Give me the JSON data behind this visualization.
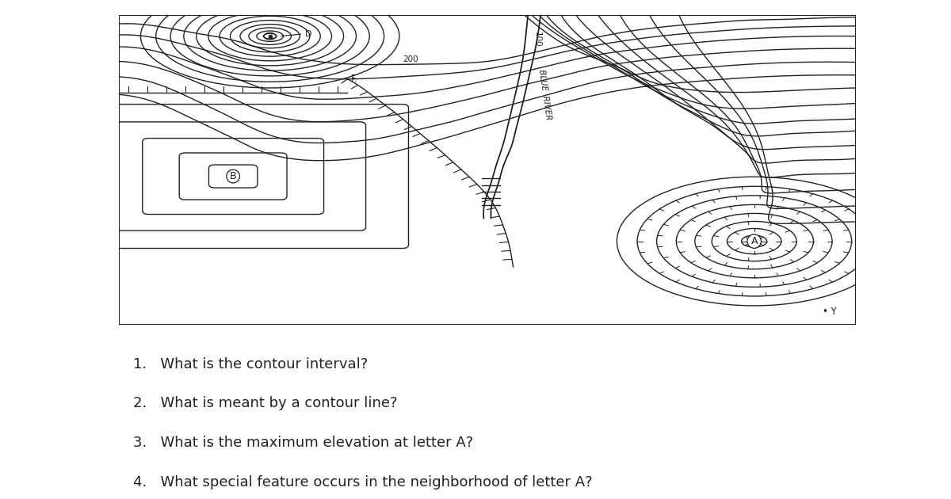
{
  "bg_color": "#ffffff",
  "map_bg": "#ffffff",
  "line_color": "#222222",
  "questions": [
    "1.   What is the contour interval?",
    "2.   What is meant by a contour line?",
    "3.   What is the maximum elevation at letter A?",
    "4.   What special feature occurs in the neighborhood of letter A?"
  ],
  "font_size_questions": 13
}
